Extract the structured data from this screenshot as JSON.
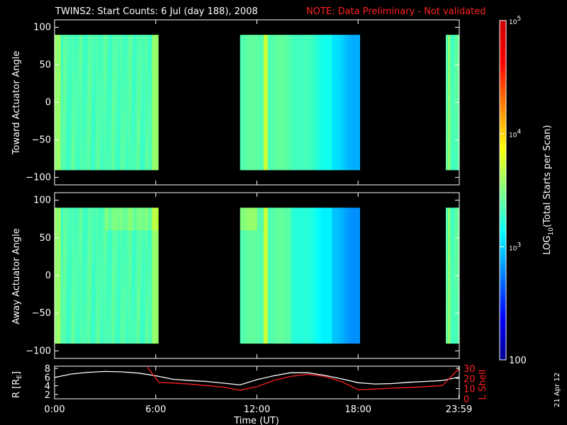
{
  "header": {
    "title": "TWINS2: Start Counts:  6 Jul (day 188), 2008",
    "note": "NOTE: Data Preliminary - Not validated",
    "note_color": "#ff2020"
  },
  "side_stamp": "21 Apr 12",
  "colorbar": {
    "label_prefix": "LOG",
    "label_sub": "10",
    "label_suffix": "(Total Starts per Scan)",
    "ticks": [
      {
        "base": "10",
        "exp": "5",
        "value": 100000
      },
      {
        "base": "10",
        "exp": "4",
        "value": 10000
      },
      {
        "base": "10",
        "exp": "3",
        "value": 1000
      },
      {
        "base": "100",
        "exp": "",
        "value": 100
      }
    ],
    "range": [
      100,
      100000
    ],
    "scale": "log"
  },
  "chart_data": [
    {
      "type": "heatmap",
      "panel": "toward",
      "ylabel": "Toward Actuator Angle",
      "yticks": [
        "100",
        "50",
        "0",
        "−50",
        "−100"
      ],
      "ylim": [
        -110,
        110
      ],
      "xlim_hours": [
        0,
        24
      ],
      "angle_range": [
        -90,
        90
      ],
      "data_intervals_hours": [
        [
          0,
          6.15
        ],
        [
          11.0,
          18.1
        ],
        [
          23.2,
          23.98
        ]
      ],
      "note": "log10 counts approx 3.3 (cyan) early, bright stripe near 13:00, decreasing to ~2.8 after 17:00"
    },
    {
      "type": "heatmap",
      "panel": "away",
      "ylabel": "Away Actuator Angle",
      "yticks": [
        "100",
        "50",
        "0",
        "−50",
        "−100"
      ],
      "ylim": [
        -110,
        110
      ],
      "xlim_hours": [
        0,
        24
      ],
      "angle_range": [
        -90,
        90
      ],
      "data_intervals_hours": [
        [
          0,
          6.15
        ],
        [
          11.0,
          18.1
        ],
        [
          23.2,
          23.98
        ]
      ]
    },
    {
      "type": "line",
      "panel": "orbit",
      "xlabel": "Time (UT)",
      "xticks": [
        "0:00",
        "6:00",
        "12:00",
        "18:00",
        "23:59"
      ],
      "xtick_hours": [
        0,
        6,
        12,
        18,
        23.98
      ],
      "ylabel_left": {
        "main": "R [R",
        "sub": "E",
        "end": "]"
      },
      "ylabel_right": "L Shell",
      "yticks_left": [
        "8",
        "6",
        "4",
        "2"
      ],
      "yticks_right": [
        "30",
        "20",
        "10",
        "0"
      ],
      "ylim_left": [
        1,
        8.5
      ],
      "ylim_right": [
        0,
        32
      ],
      "series": [
        {
          "name": "R",
          "color": "#ffffff",
          "x": [
            0,
            1,
            2,
            3,
            4,
            5,
            6,
            7,
            8,
            9,
            10,
            11,
            12,
            13,
            14,
            15,
            16,
            17,
            18,
            19,
            20,
            21,
            22,
            23,
            24
          ],
          "y": [
            5.9,
            6.7,
            7.1,
            7.3,
            7.2,
            6.9,
            6.3,
            5.5,
            5.2,
            5.0,
            4.6,
            4.2,
            5.4,
            6.3,
            7.0,
            7.0,
            6.4,
            5.6,
            4.7,
            4.4,
            4.5,
            4.8,
            5.0,
            5.2,
            6.0
          ]
        },
        {
          "name": "L Shell",
          "color": "#ff2020",
          "x": [
            5.5,
            6.2,
            7,
            8,
            9,
            10,
            11,
            12,
            13,
            14,
            15,
            16,
            17,
            18,
            19,
            20,
            21,
            22,
            23,
            24
          ],
          "y": [
            31,
            16,
            15.5,
            14.5,
            13,
            11.5,
            8.5,
            12,
            18,
            22,
            24,
            22,
            17,
            9,
            9.5,
            10.5,
            11,
            12,
            13,
            30
          ]
        }
      ]
    }
  ]
}
